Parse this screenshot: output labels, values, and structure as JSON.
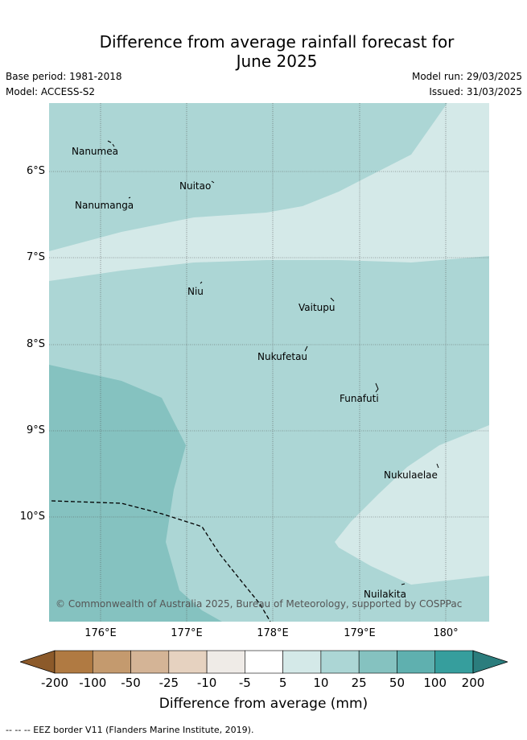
{
  "title_line1": "Difference from average rainfall forecast for",
  "title_line2": "June 2025",
  "base_period": "Base period: 1981-2018",
  "model": "Model: ACCESS-S2",
  "model_run": "Model run: 29/03/2025",
  "issued": "Issued: 31/03/2025",
  "copyright": "© Commonwealth of Australia 2025, Bureau of Meteorology, supported by COSPPac",
  "lat_labels": [
    "6°S",
    "7°S",
    "8°S",
    "9°S",
    "10°S"
  ],
  "lon_labels": [
    "176°E",
    "177°E",
    "178°E",
    "179°E",
    "180°"
  ],
  "islands": {
    "nanumea": "Nanumea",
    "nuitao": "Nuitao",
    "nanumanga": "Nanumanga",
    "niu": "Niu",
    "vaitupu": "Vaitupu",
    "nukufetau": "Nukufetau",
    "funafuti": "Funafuti",
    "nukulaelae": "Nukulaelae",
    "nuilakita": "Nuilakita"
  },
  "colorbar": {
    "ticks": [
      "-200",
      "-100",
      "-50",
      "-25",
      "-10",
      "-5",
      "5",
      "10",
      "25",
      "50",
      "100",
      "200"
    ],
    "colors": [
      "#8c5a2a",
      "#b07a42",
      "#c49a6e",
      "#d4b496",
      "#e6d2c0",
      "#efebe7",
      "#ffffff",
      "#d4e9e8",
      "#acd6d5",
      "#85c2c0",
      "#5fb0af",
      "#369e9d",
      "#2b7d7d"
    ],
    "title": "Difference from average (mm)"
  },
  "legend_note": "-- -- -- EEZ border V11 (Flanders Marine Institute, 2019).",
  "map_colors": {
    "band_5_10": "#d4e9e8",
    "band_10_25": "#acd6d5",
    "band_25_50": "#85c2c0"
  }
}
